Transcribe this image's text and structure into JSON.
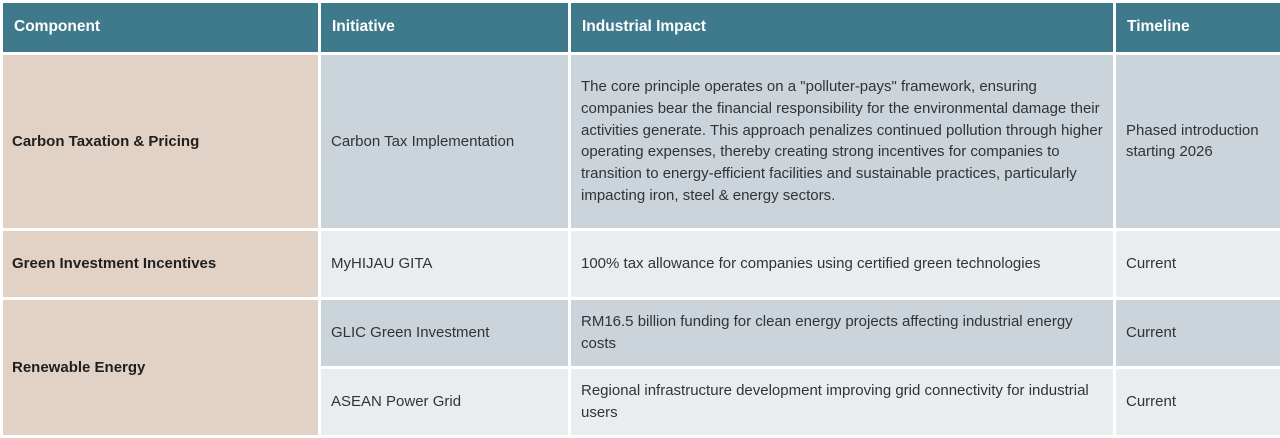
{
  "colors": {
    "header_bg": "#3f7a8c",
    "header_text": "#ffffff",
    "component_bg": "#e2d2c5",
    "band_dark": "#cbd4db",
    "band_light": "#e9edf0",
    "body_text": "#333333",
    "component_text": "#1f1f1f",
    "border": "#ffffff"
  },
  "table": {
    "columns": [
      {
        "label": "Component"
      },
      {
        "label": "Initiative"
      },
      {
        "label": "Industrial Impact"
      },
      {
        "label": "Timeline"
      }
    ],
    "groups": [
      {
        "component": "Carbon Taxation & Pricing",
        "rows": [
          {
            "initiative": "Carbon Tax Implementation",
            "impact": "The core principle operates on a \"polluter-pays\" framework, ensuring companies bear the financial responsibility for the environmental damage their activities generate. This approach penalizes continued pollution through higher operating expenses, thereby creating strong incentives for companies to transition to energy-efficient facilities and sustainable practices, particularly impacting iron, steel & energy sectors.",
            "timeline": "Phased introduction starting 2026"
          }
        ]
      },
      {
        "component": "Green Investment Incentives",
        "rows": [
          {
            "initiative": "MyHIJAU GITA",
            "impact": "100% tax allowance for companies using certified green technologies",
            "timeline": "Current"
          }
        ]
      },
      {
        "component": "Renewable Energy",
        "rows": [
          {
            "initiative": "GLIC Green Investment",
            "impact": "RM16.5 billion funding for clean energy projects affecting industrial energy costs",
            "timeline": "Current"
          },
          {
            "initiative": "ASEAN Power Grid",
            "impact": "Regional infrastructure development improving grid connectivity for industrial users",
            "timeline": "Current"
          }
        ]
      }
    ]
  }
}
